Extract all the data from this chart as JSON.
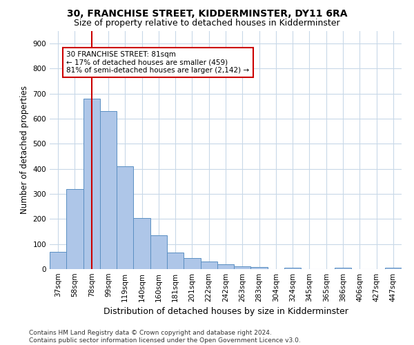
{
  "title1": "30, FRANCHISE STREET, KIDDERMINSTER, DY11 6RA",
  "title2": "Size of property relative to detached houses in Kidderminster",
  "xlabel": "Distribution of detached houses by size in Kidderminster",
  "ylabel": "Number of detached properties",
  "categories": [
    "37sqm",
    "58sqm",
    "78sqm",
    "99sqm",
    "119sqm",
    "140sqm",
    "160sqm",
    "181sqm",
    "201sqm",
    "222sqm",
    "242sqm",
    "263sqm",
    "283sqm",
    "304sqm",
    "324sqm",
    "345sqm",
    "365sqm",
    "386sqm",
    "406sqm",
    "427sqm",
    "447sqm"
  ],
  "values": [
    70,
    320,
    680,
    630,
    410,
    205,
    135,
    65,
    45,
    30,
    20,
    12,
    8,
    0,
    5,
    0,
    0,
    5,
    0,
    0,
    5
  ],
  "bar_color": "#aec6e8",
  "bar_edge_color": "#5a8fc2",
  "vline_x": 2,
  "vline_color": "#cc0000",
  "annotation_text": "30 FRANCHISE STREET: 81sqm\n← 17% of detached houses are smaller (459)\n81% of semi-detached houses are larger (2,142) →",
  "annotation_box_color": "#ffffff",
  "annotation_box_edge_color": "#cc0000",
  "ylim": [
    0,
    950
  ],
  "yticks": [
    0,
    100,
    200,
    300,
    400,
    500,
    600,
    700,
    800,
    900
  ],
  "footnote": "Contains HM Land Registry data © Crown copyright and database right 2024.\nContains public sector information licensed under the Open Government Licence v3.0.",
  "bg_color": "#ffffff",
  "grid_color": "#c8d8e8",
  "title1_fontsize": 10,
  "title2_fontsize": 9,
  "xlabel_fontsize": 9,
  "ylabel_fontsize": 8.5,
  "tick_fontsize": 7.5,
  "footnote_fontsize": 6.5,
  "ann_fontsize": 7.5
}
